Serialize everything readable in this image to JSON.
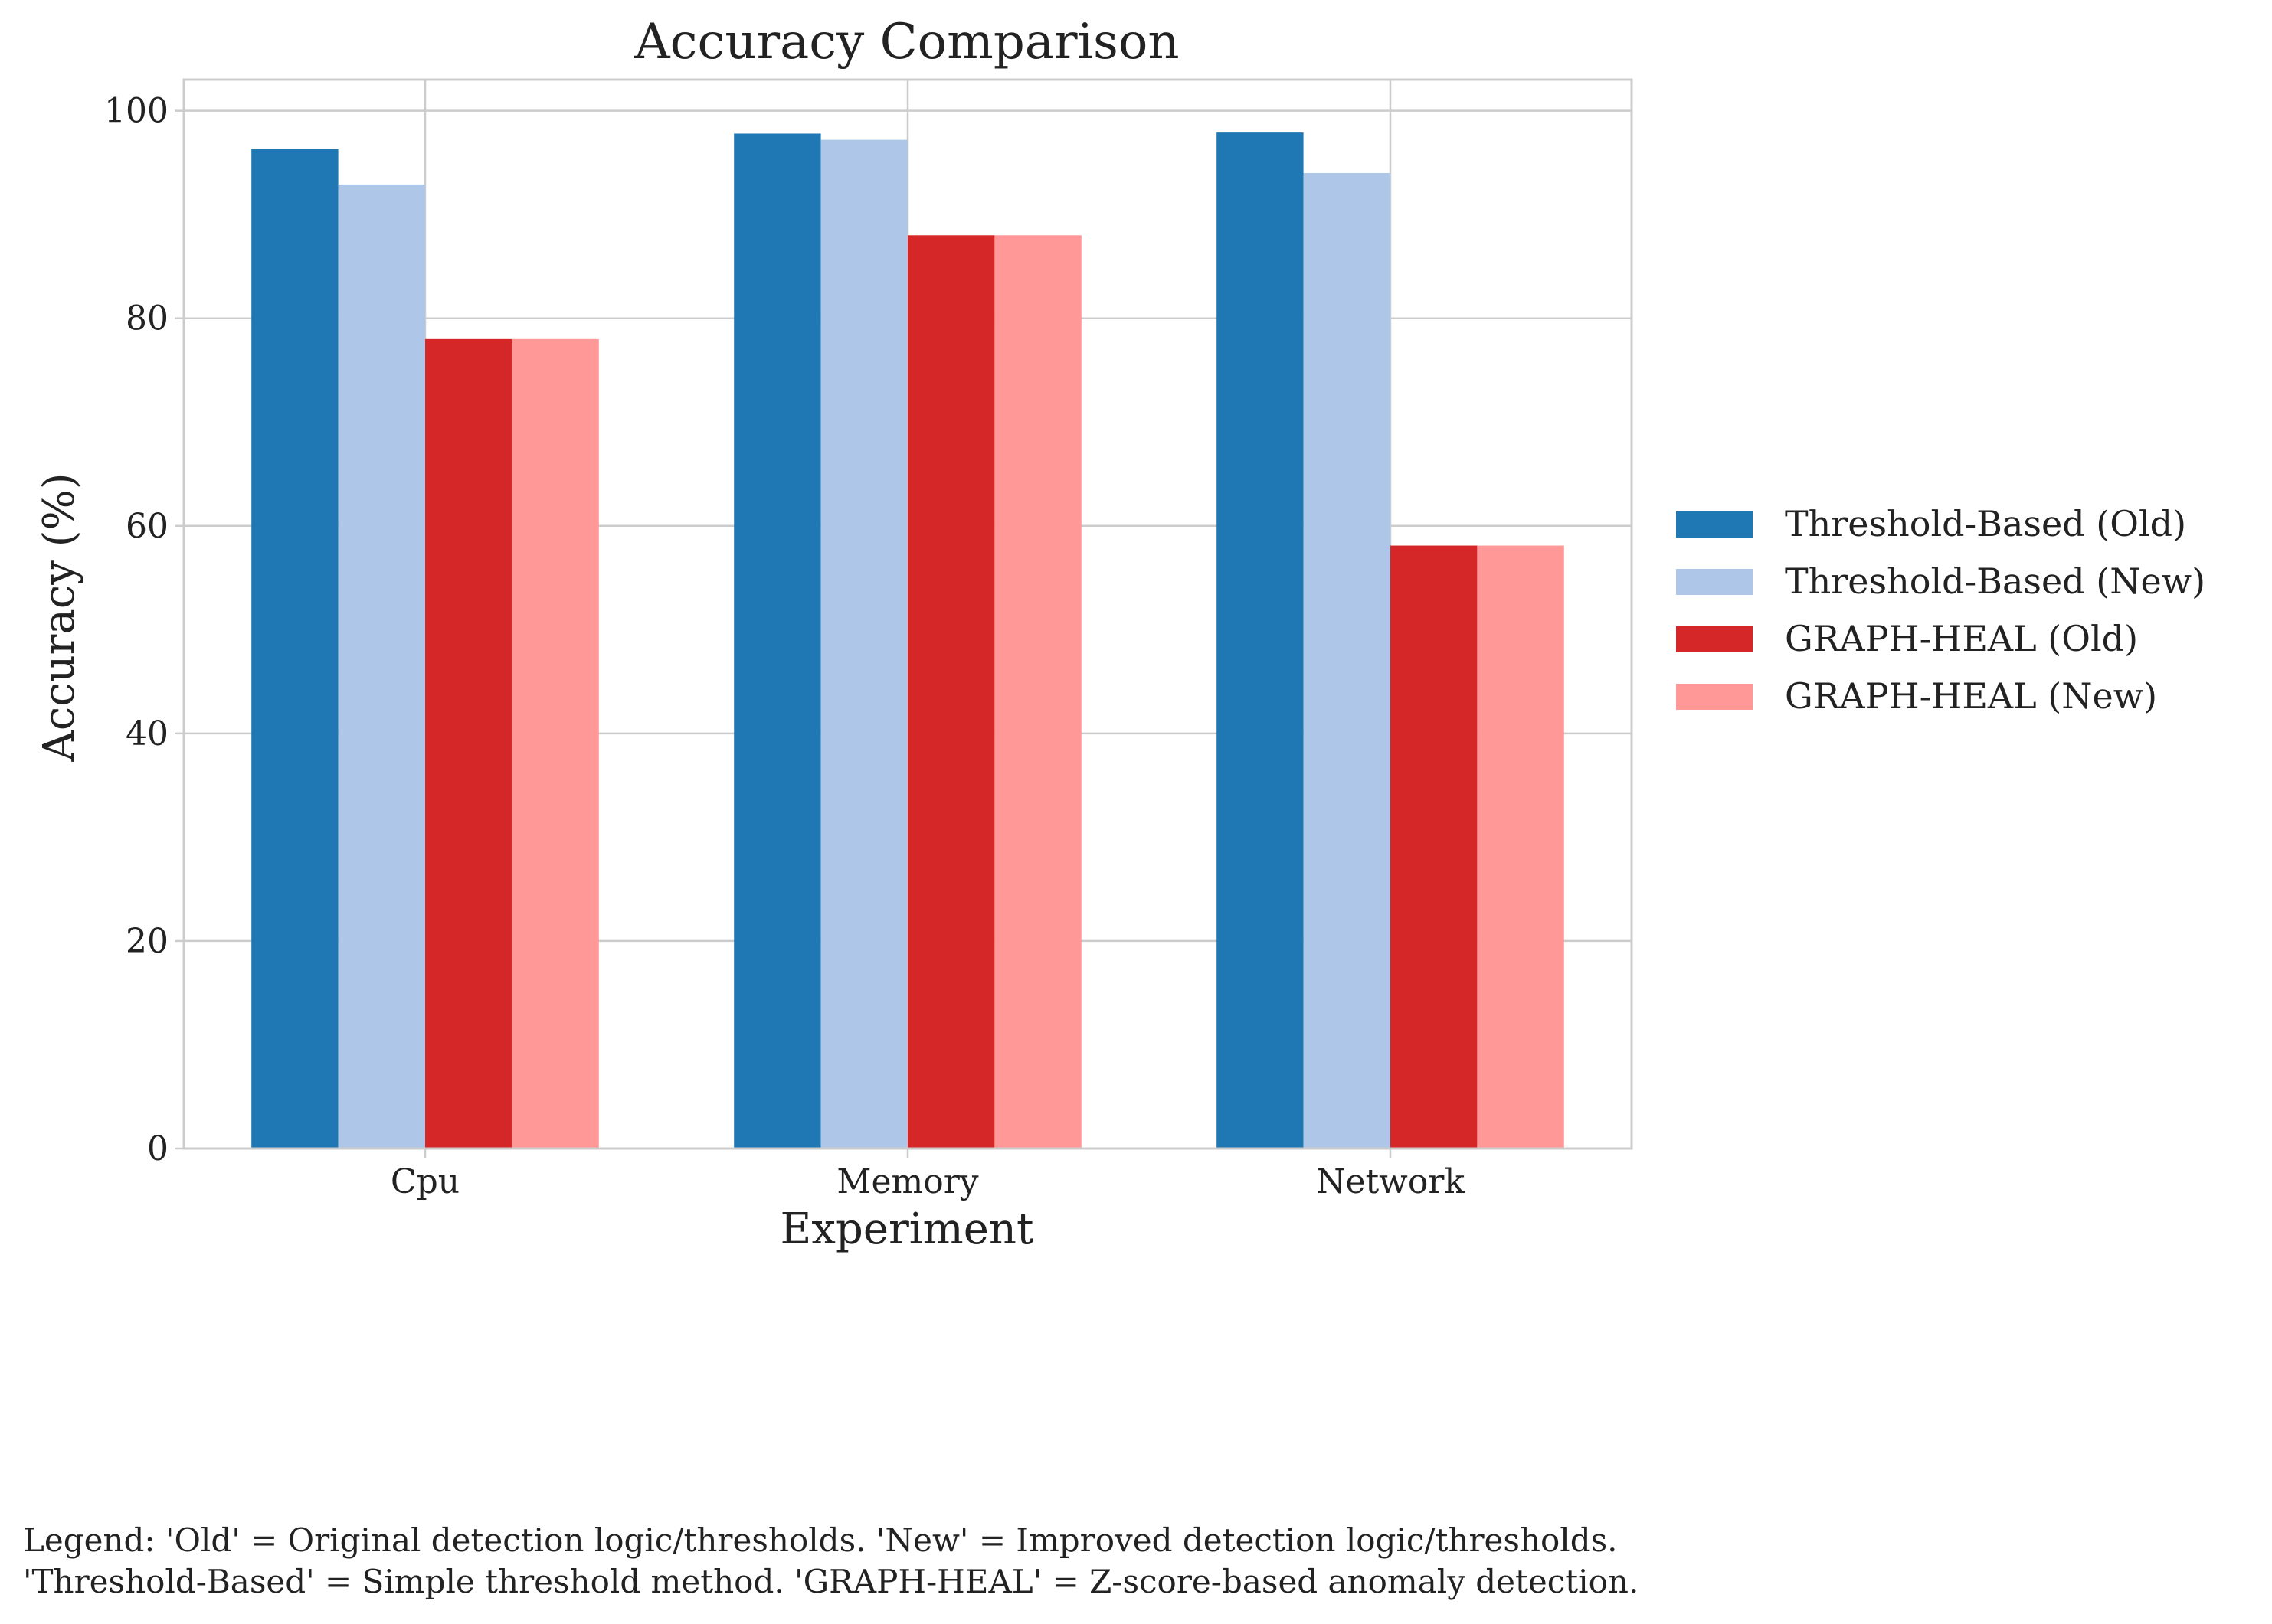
{
  "chart_data": {
    "type": "bar",
    "title": "Accuracy Comparison",
    "xlabel": "Experiment",
    "ylabel": "Accuracy (%)",
    "categories": [
      "Cpu",
      "Memory",
      "Network"
    ],
    "ylim": [
      0,
      103
    ],
    "yticks": [
      0,
      20,
      40,
      60,
      80,
      100
    ],
    "grid": true,
    "legend_position": "center-right outside",
    "series": [
      {
        "name": "Threshold-Based (Old)",
        "color": "#1f77b4",
        "values": [
          96.3,
          97.8,
          97.9
        ]
      },
      {
        "name": "Threshold-Based (New)",
        "color": "#aec7e8",
        "values": [
          92.9,
          97.2,
          94.0
        ]
      },
      {
        "name": "GRAPH-HEAL (Old)",
        "color": "#d62728",
        "values": [
          78.0,
          88.0,
          58.1
        ]
      },
      {
        "name": "GRAPH-HEAL (New)",
        "color": "#ff9896",
        "values": [
          78.0,
          88.0,
          58.1
        ]
      }
    ]
  },
  "footnote": {
    "line1": "Legend: 'Old' = Original detection logic/thresholds. 'New' = Improved detection logic/thresholds.",
    "line2": "'Threshold-Based' = Simple threshold method. 'GRAPH-HEAL' = Z-score-based anomaly detection."
  }
}
